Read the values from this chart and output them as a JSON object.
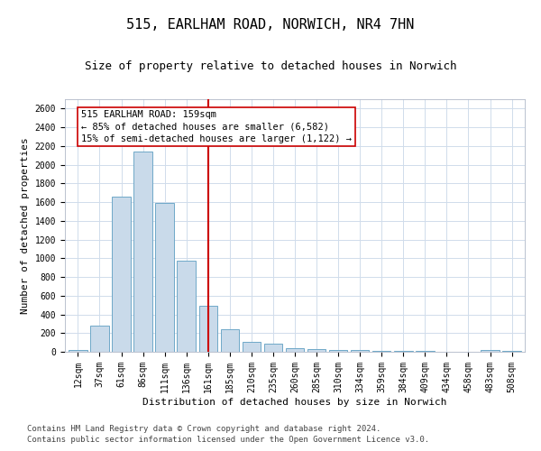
{
  "title1": "515, EARLHAM ROAD, NORWICH, NR4 7HN",
  "title2": "Size of property relative to detached houses in Norwich",
  "xlabel": "Distribution of detached houses by size in Norwich",
  "ylabel": "Number of detached properties",
  "categories": [
    "12sqm",
    "37sqm",
    "61sqm",
    "86sqm",
    "111sqm",
    "136sqm",
    "161sqm",
    "185sqm",
    "210sqm",
    "235sqm",
    "260sqm",
    "285sqm",
    "310sqm",
    "334sqm",
    "359sqm",
    "384sqm",
    "409sqm",
    "434sqm",
    "458sqm",
    "483sqm",
    "508sqm"
  ],
  "values": [
    20,
    280,
    1660,
    2140,
    1590,
    970,
    490,
    240,
    110,
    90,
    35,
    30,
    20,
    15,
    10,
    8,
    5,
    3,
    3,
    15,
    5
  ],
  "bar_color": "#c9daea",
  "bar_edge_color": "#6fa8c8",
  "vline_x": 6,
  "vline_color": "#cc0000",
  "annotation_line1": "515 EARLHAM ROAD: 159sqm",
  "annotation_line2": "← 85% of detached houses are smaller (6,582)",
  "annotation_line3": "15% of semi-detached houses are larger (1,122) →",
  "annotation_box_color": "#cc0000",
  "ylim": [
    0,
    2700
  ],
  "yticks": [
    0,
    200,
    400,
    600,
    800,
    1000,
    1200,
    1400,
    1600,
    1800,
    2000,
    2200,
    2400,
    2600
  ],
  "footer1": "Contains HM Land Registry data © Crown copyright and database right 2024.",
  "footer2": "Contains public sector information licensed under the Open Government Licence v3.0.",
  "bg_color": "#ffffff",
  "grid_color": "#d0dceb",
  "title1_fontsize": 11,
  "title2_fontsize": 9,
  "tick_fontsize": 7,
  "label_fontsize": 8,
  "annotation_fontsize": 7.5,
  "footer_fontsize": 6.5
}
